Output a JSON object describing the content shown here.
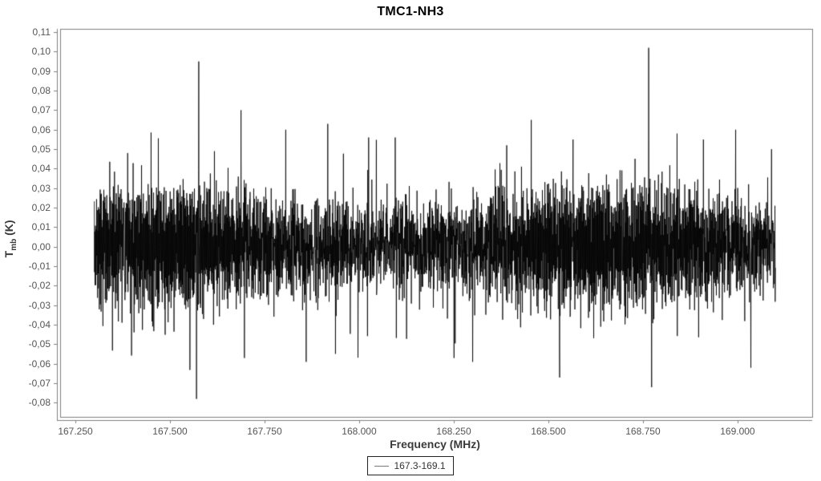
{
  "page": {
    "background_color": "#ffffff",
    "frame_color": "#808080",
    "tick_label_color": "#555555",
    "axis_label_color": "#3a3a3a"
  },
  "chart_data": {
    "type": "line",
    "title": "TMC1-NH3",
    "xlabel": "Frequency (MHz)",
    "ylabel_main": "T",
    "ylabel_sub": "mb",
    "ylabel_unit": " (K)",
    "grid": "off",
    "xlim": [
      167.2097,
      169.1972
    ],
    "ylim": [
      -0.0872,
      0.1117
    ],
    "x_ticks": [
      {
        "value": 167.25,
        "label": "167.250"
      },
      {
        "value": 167.5,
        "label": "167.500"
      },
      {
        "value": 167.75,
        "label": "167.750"
      },
      {
        "value": 168.0,
        "label": "168.000"
      },
      {
        "value": 168.25,
        "label": "168.250"
      },
      {
        "value": 168.5,
        "label": "168.500"
      },
      {
        "value": 168.75,
        "label": "168.750"
      },
      {
        "value": 169.0,
        "label": "169.000"
      }
    ],
    "y_ticks": [
      {
        "value": 0.11,
        "label": "0,11"
      },
      {
        "value": 0.1,
        "label": "0,10"
      },
      {
        "value": 0.09,
        "label": "0,09"
      },
      {
        "value": 0.08,
        "label": "0,08"
      },
      {
        "value": 0.07,
        "label": "0,07"
      },
      {
        "value": 0.06,
        "label": "0,06"
      },
      {
        "value": 0.05,
        "label": "0,05"
      },
      {
        "value": 0.04,
        "label": "0,04"
      },
      {
        "value": 0.03,
        "label": "0,03"
      },
      {
        "value": 0.02,
        "label": "0,02"
      },
      {
        "value": 0.01,
        "label": "0,01"
      },
      {
        "value": 0.0,
        "label": "0,00"
      },
      {
        "value": -0.01,
        "label": "-0,01"
      },
      {
        "value": -0.02,
        "label": "-0,02"
      },
      {
        "value": -0.03,
        "label": "-0,03"
      },
      {
        "value": -0.04,
        "label": "-0,04"
      },
      {
        "value": -0.05,
        "label": "-0,05"
      },
      {
        "value": -0.06,
        "label": "-0,06"
      },
      {
        "value": -0.07,
        "label": "-0,07"
      },
      {
        "value": -0.08,
        "label": "-0,08"
      }
    ],
    "series": [
      {
        "name": "167.3-169.1",
        "color": "#000000",
        "x_start": 167.3,
        "x_end": 169.1,
        "n_points": 3000,
        "noise_model": {
          "description": "dense radio-spectrum noise band, rms ~0.015 K, dense core +/-0.03 K, fringe to +/-0.05 K",
          "band_amplitude": 0.0225,
          "gauss_sigma": 0.0085,
          "tail_probability": 0.07,
          "tail_max": 0.034,
          "seed": 42
        },
        "spikes": [
          {
            "x": 167.57,
            "y": -0.078
          },
          {
            "x": 167.576,
            "y": 0.095
          },
          {
            "x": 167.688,
            "y": 0.07
          },
          {
            "x": 167.697,
            "y": -0.057
          },
          {
            "x": 167.806,
            "y": 0.06
          },
          {
            "x": 167.86,
            "y": -0.059
          },
          {
            "x": 167.917,
            "y": 0.063
          },
          {
            "x": 168.025,
            "y": 0.056
          },
          {
            "x": 168.095,
            "y": 0.056
          },
          {
            "x": 168.3,
            "y": -0.059
          },
          {
            "x": 168.39,
            "y": 0.052
          },
          {
            "x": 168.455,
            "y": 0.065
          },
          {
            "x": 168.53,
            "y": -0.067
          },
          {
            "x": 168.565,
            "y": 0.055
          },
          {
            "x": 168.765,
            "y": 0.102
          },
          {
            "x": 168.773,
            "y": -0.072
          },
          {
            "x": 168.84,
            "y": 0.058
          },
          {
            "x": 168.91,
            "y": 0.055
          },
          {
            "x": 168.995,
            "y": 0.06
          },
          {
            "x": 169.035,
            "y": -0.062
          },
          {
            "x": 169.09,
            "y": 0.05
          }
        ]
      }
    ],
    "legend": {
      "label": "167.3-169.1",
      "position": "bottom-center"
    }
  }
}
